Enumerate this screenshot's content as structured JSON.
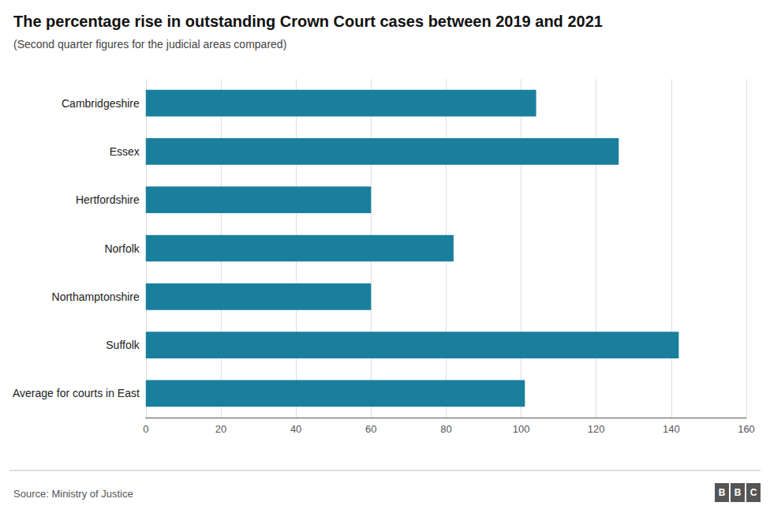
{
  "chart_data": {
    "type": "bar",
    "title": "The percentage rise in outstanding Crown Court cases between 2019 and 2021",
    "subtitle": "(Second quarter figures for the judicial areas compared)",
    "source": "Source: Ministry of Justice",
    "logo": [
      "B",
      "B",
      "C"
    ],
    "orientation": "horizontal",
    "categories": [
      "Cambridgeshire",
      "Essex",
      "Hertfordshire",
      "Norfolk",
      "Northamptonshire",
      "Suffolk",
      "Average for courts in East"
    ],
    "values": [
      104,
      126,
      60,
      82,
      60,
      142,
      101
    ],
    "color": "#1a7f9c",
    "xlim": [
      0,
      160
    ],
    "xticks": [
      0,
      20,
      40,
      60,
      80,
      100,
      120,
      140,
      160
    ],
    "grid": true
  }
}
